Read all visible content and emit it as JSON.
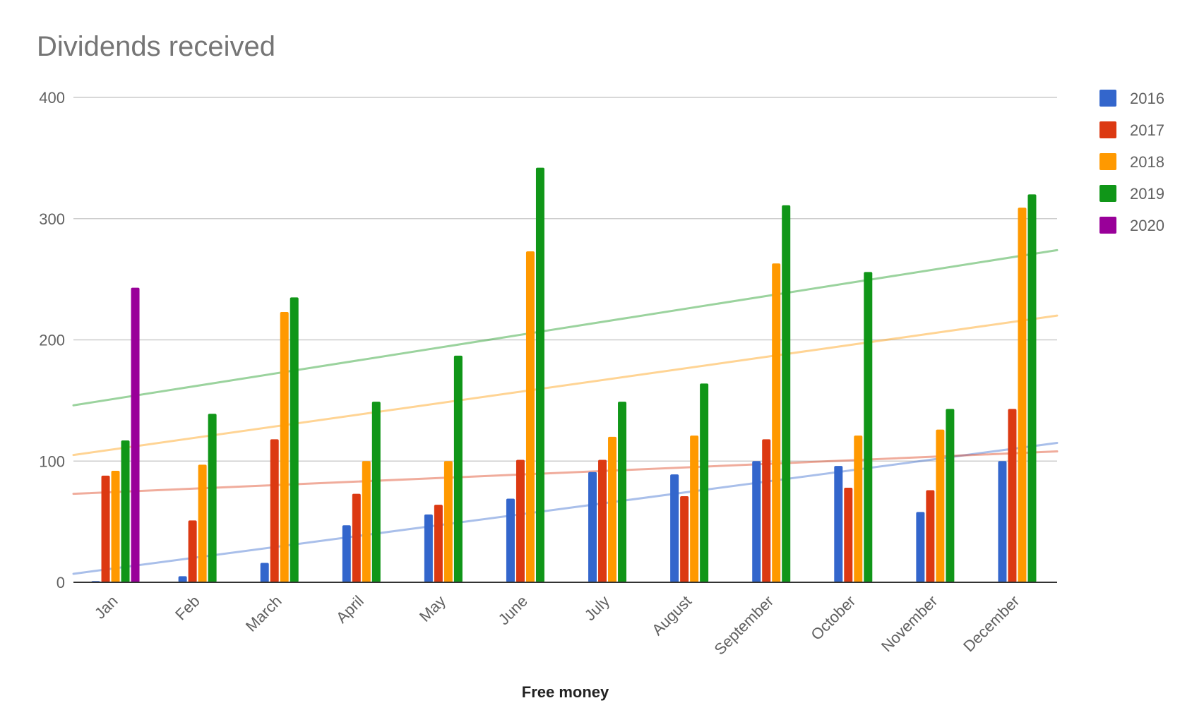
{
  "chart_data": {
    "type": "bar",
    "title": "Dividends received",
    "xlabel": "Free money",
    "ylabel": "",
    "ylim": [
      0,
      400
    ],
    "yticks": [
      0,
      100,
      200,
      300,
      400
    ],
    "grid": true,
    "legend_position": "right",
    "categories": [
      "Jan",
      "Feb",
      "March",
      "April",
      "May",
      "June",
      "July",
      "August",
      "September",
      "October",
      "November",
      "December"
    ],
    "series": [
      {
        "name": "2016",
        "color": "#3366cc",
        "values": [
          1,
          5,
          16,
          47,
          56,
          69,
          91,
          89,
          100,
          96,
          58,
          100
        ]
      },
      {
        "name": "2017",
        "color": "#dc3912",
        "values": [
          88,
          51,
          118,
          73,
          64,
          101,
          101,
          71,
          118,
          78,
          76,
          143
        ]
      },
      {
        "name": "2018",
        "color": "#ff9900",
        "values": [
          92,
          97,
          223,
          100,
          100,
          273,
          120,
          121,
          263,
          121,
          126,
          309
        ]
      },
      {
        "name": "2019",
        "color": "#109618",
        "values": [
          117,
          139,
          235,
          149,
          187,
          342,
          149,
          164,
          311,
          256,
          143,
          320
        ]
      },
      {
        "name": "2020",
        "color": "#990099",
        "values": [
          243,
          null,
          null,
          null,
          null,
          null,
          null,
          null,
          null,
          null,
          null,
          null
        ]
      }
    ],
    "trendlines": [
      {
        "series": "2016",
        "color": "#3366cc",
        "start": 7,
        "end": 115
      },
      {
        "series": "2017",
        "color": "#dc3912",
        "start": 73,
        "end": 108
      },
      {
        "series": "2018",
        "color": "#ff9900",
        "start": 105,
        "end": 220
      },
      {
        "series": "2019",
        "color": "#109618",
        "start": 146,
        "end": 274
      }
    ]
  }
}
